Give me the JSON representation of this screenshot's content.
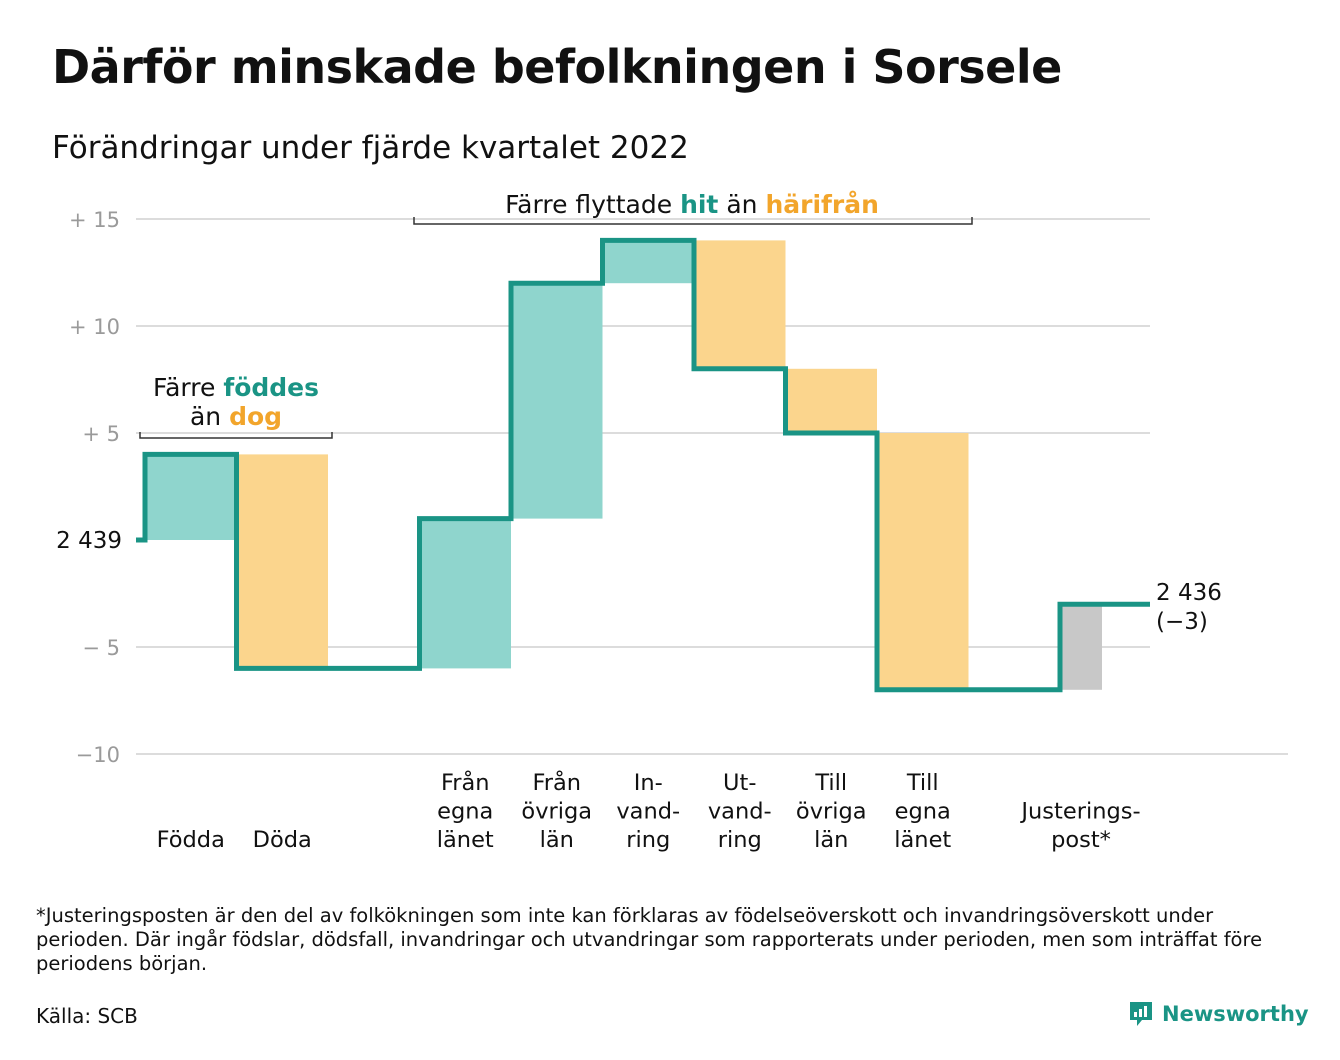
{
  "header": {
    "title": "Därför minskade befolkningen i Sorsele",
    "subtitle": "Förändringar under fjärde kvartalet 2022"
  },
  "chart_data": {
    "type": "waterfall",
    "baseline_value": 2439,
    "start_label": "2 439",
    "end_label_lines": [
      "2 436",
      "(−3)"
    ],
    "y_ticks": [
      {
        "value": 15,
        "label": "+ 15"
      },
      {
        "value": 10,
        "label": "+ 10"
      },
      {
        "value": 5,
        "label": "+ 5"
      },
      {
        "value": -5,
        "label": "− 5"
      },
      {
        "value": -10,
        "label": "−10"
      }
    ],
    "ylim": [
      -10,
      15
    ],
    "grid": true,
    "steps": [
      {
        "label_lines": [
          "Födda"
        ],
        "change": 4,
        "kind": "in"
      },
      {
        "label_lines": [
          "Döda"
        ],
        "change": -10,
        "kind": "out"
      },
      {
        "label_lines": [
          "Från",
          "egna",
          "länet"
        ],
        "change": 7,
        "kind": "in"
      },
      {
        "label_lines": [
          "Från",
          "övriga",
          "län"
        ],
        "change": 11,
        "kind": "in"
      },
      {
        "label_lines": [
          "In-",
          "vand-",
          "ring"
        ],
        "change": 2,
        "kind": "in"
      },
      {
        "label_lines": [
          "Ut-",
          "vand-",
          "ring"
        ],
        "change": -6,
        "kind": "out"
      },
      {
        "label_lines": [
          "Till",
          "övriga",
          "län"
        ],
        "change": -3,
        "kind": "out"
      },
      {
        "label_lines": [
          "Till",
          "egna",
          "länet"
        ],
        "change": -12,
        "kind": "out"
      },
      {
        "label_lines": [
          "Justerings-",
          "post*"
        ],
        "change": 4,
        "kind": "adjust"
      }
    ],
    "annotations": {
      "births": {
        "parts": [
          {
            "text": "Färre ",
            "style": "plain"
          },
          {
            "text": "föddes",
            "style": "teal"
          },
          {
            "text": "än ",
            "style": "plain",
            "newline": true
          },
          {
            "text": "dog",
            "style": "orange"
          }
        ]
      },
      "migration": {
        "parts": [
          {
            "text": "Färre flyttade ",
            "style": "plain"
          },
          {
            "text": "hit",
            "style": "teal"
          },
          {
            "text": " än ",
            "style": "plain"
          },
          {
            "text": "härifrån",
            "style": "orange"
          }
        ]
      }
    },
    "colors": {
      "line": "#1a9485",
      "in_fill": "#8fd5cd",
      "out_fill": "#fbd58d",
      "adjust_fill": "#c8c8c8",
      "teal_text": "#1a9485",
      "orange_text": "#f2a52b",
      "grid": "#dcdcdc",
      "tick": "#9a9a9a"
    }
  },
  "footnote": "*Justeringsposten är den del av folkökningen som inte kan förklaras av födelseöverskott och invandringsöverskott under perioden. Där ingår födslar, dödsfall, invandringar och utvandringar som rapporterats under perioden, men som inträffat före periodens början.",
  "source": "Källa: SCB",
  "brand": {
    "name": "Newsworthy",
    "icon": "newsworthy-logo-icon"
  }
}
